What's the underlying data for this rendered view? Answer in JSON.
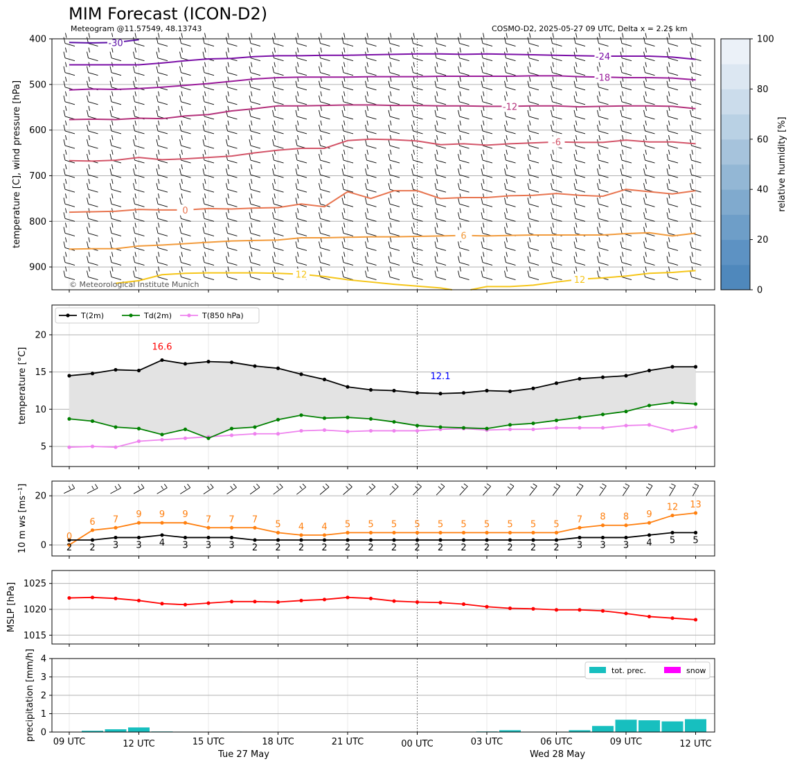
{
  "header": {
    "title": "MIM Forecast (ICON-D2)",
    "subtitle_left": "Meteogram @11.57549, 48.13743",
    "subtitle_right": "COSMO-D2, 2025-05-27 09 UTC, Delta x = 2.2$ km"
  },
  "chart_data": [
    {
      "id": "upper-air",
      "type": "line",
      "ylabel": "temperature [C], wind pressure [hPa]",
      "ylim": [
        950,
        400
      ],
      "yticks": [
        400,
        500,
        600,
        700,
        800,
        900
      ],
      "colorbar": {
        "label": "relative humidity [%]",
        "ticks": [
          0,
          20,
          40,
          60,
          80,
          100
        ]
      },
      "copyright": "© Meteorological Institute Munich",
      "contours": [
        {
          "label": "-30",
          "color": "#5b0ea6",
          "label_hour": 2,
          "x": [
            0,
            1,
            2,
            3
          ],
          "p": [
            408,
            409,
            408,
            402
          ]
        },
        {
          "label": "-24",
          "color": "#7a0ea6",
          "label_hour": 23,
          "x": [
            0,
            1,
            2,
            3,
            4,
            5,
            6,
            7,
            8,
            9,
            10,
            11,
            12,
            13,
            14,
            15,
            16,
            17,
            18,
            19,
            20,
            21,
            22,
            23,
            24,
            25,
            26,
            27
          ],
          "p": [
            457,
            457,
            457,
            457,
            453,
            448,
            444,
            443,
            439,
            437,
            437,
            436,
            436,
            435,
            434,
            433,
            433,
            434,
            433,
            434,
            435,
            436,
            437,
            438,
            438,
            438,
            440,
            445
          ]
        },
        {
          "label": "-18",
          "color": "#9a1a9a",
          "label_hour": 23,
          "x": [
            0,
            1,
            2,
            3,
            4,
            5,
            6,
            7,
            8,
            9,
            10,
            11,
            12,
            13,
            14,
            15,
            16,
            17,
            18,
            19,
            20,
            21,
            22,
            23,
            24,
            25,
            26,
            27
          ],
          "p": [
            512,
            510,
            511,
            509,
            506,
            502,
            498,
            493,
            488,
            485,
            484,
            484,
            484,
            483,
            483,
            483,
            482,
            482,
            482,
            482,
            481,
            481,
            483,
            484,
            485,
            485,
            486,
            490
          ]
        },
        {
          "label": "-12",
          "color": "#b3307a",
          "label_hour": 19,
          "x": [
            0,
            1,
            2,
            3,
            4,
            5,
            6,
            7,
            8,
            9,
            10,
            11,
            12,
            13,
            14,
            15,
            16,
            17,
            18,
            19,
            20,
            21,
            22,
            23,
            24,
            25,
            26,
            27
          ],
          "p": [
            577,
            576,
            577,
            574,
            575,
            569,
            566,
            558,
            553,
            547,
            547,
            546,
            545,
            545,
            546,
            546,
            547,
            547,
            548,
            548,
            547,
            547,
            549,
            548,
            547,
            547,
            548,
            553
          ]
        },
        {
          "label": "-6",
          "color": "#d35468",
          "label_hour": 21,
          "x": [
            0,
            1,
            2,
            3,
            4,
            5,
            6,
            7,
            8,
            9,
            10,
            11,
            12,
            13,
            14,
            15,
            16,
            17,
            18,
            19,
            20,
            21,
            22,
            23,
            24,
            25,
            26,
            27
          ],
          "p": [
            667,
            668,
            666,
            660,
            665,
            663,
            660,
            657,
            650,
            644,
            640,
            640,
            623,
            620,
            621,
            624,
            632,
            630,
            633,
            630,
            628,
            626,
            627,
            627,
            622,
            626,
            626,
            630
          ]
        },
        {
          "label": "0",
          "color": "#e8744f",
          "label_hour": 5,
          "x": [
            0,
            1,
            2,
            3,
            4,
            5,
            6,
            7,
            8,
            9,
            10,
            11,
            12,
            13,
            14,
            15,
            16,
            17,
            18,
            19,
            20,
            21,
            22,
            23,
            24,
            25,
            26,
            27
          ],
          "p": [
            780,
            779,
            778,
            774,
            775,
            775,
            772,
            773,
            771,
            770,
            762,
            768,
            735,
            750,
            733,
            733,
            750,
            748,
            748,
            744,
            743,
            739,
            743,
            745,
            730,
            735,
            740,
            733
          ]
        },
        {
          "label": "6",
          "color": "#f29a3a",
          "label_hour": 17,
          "x": [
            0,
            1,
            2,
            3,
            4,
            5,
            6,
            7,
            8,
            9,
            10,
            11,
            12,
            13,
            14,
            15,
            16,
            17,
            18,
            19,
            20,
            21,
            22,
            23,
            24,
            25,
            26,
            27
          ],
          "p": [
            861,
            860,
            860,
            854,
            852,
            849,
            846,
            843,
            842,
            841,
            836,
            836,
            835,
            834,
            834,
            833,
            832,
            831,
            832,
            831,
            830,
            830,
            830,
            830,
            827,
            825,
            832,
            826
          ]
        },
        {
          "label": "12",
          "color": "#f5c518",
          "label_hour": 10,
          "x": [
            2,
            3,
            4,
            5,
            6,
            7,
            8,
            9,
            10,
            11,
            12,
            13,
            14,
            15,
            16,
            16.5
          ],
          "p": [
            936,
            930,
            917,
            914,
            913,
            913,
            913,
            914,
            916,
            921,
            928,
            933,
            938,
            942,
            946,
            950
          ]
        },
        {
          "label": "12",
          "color": "#f5c518",
          "label_hour": 22,
          "x": [
            17.3,
            18,
            19,
            20,
            21,
            22,
            23,
            24,
            25,
            26,
            27
          ],
          "p": [
            950,
            943,
            943,
            940,
            933,
            927,
            924,
            920,
            914,
            912,
            908
          ]
        }
      ]
    },
    {
      "id": "temperature",
      "type": "line",
      "ylabel": "temperature [$^\\circ$C]",
      "ylim": [
        2.3,
        24
      ],
      "yticks": [
        5,
        10,
        15,
        20
      ],
      "max_label": "16.6",
      "min_label": "12.1",
      "legend": [
        "T(2m)",
        "Td(2m)",
        "T(850 hPa)"
      ],
      "colors": {
        "t2m": "#000000",
        "td2m": "#008000",
        "t850": "#ee82ee",
        "fill": "#e3e3e3",
        "max": "#ff0000",
        "min": "#0000ff"
      },
      "series": [
        {
          "name": "T(2m)",
          "values": [
            14.5,
            14.8,
            15.3,
            15.2,
            16.6,
            16.1,
            16.4,
            16.3,
            15.8,
            15.5,
            14.7,
            14.0,
            13.0,
            12.6,
            12.5,
            12.2,
            12.1,
            12.2,
            12.5,
            12.4,
            12.8,
            13.5,
            14.1,
            14.3,
            14.5,
            15.2,
            15.7,
            15.7
          ]
        },
        {
          "name": "Td(2m)",
          "values": [
            8.7,
            8.4,
            7.6,
            7.4,
            6.6,
            7.3,
            6.1,
            7.4,
            7.6,
            8.6,
            9.2,
            8.8,
            8.9,
            8.7,
            8.3,
            7.8,
            7.6,
            7.5,
            7.4,
            7.9,
            8.1,
            8.5,
            8.9,
            9.3,
            9.7,
            10.5,
            10.9,
            10.7
          ]
        },
        {
          "name": "T(850 hPa)",
          "values": [
            4.9,
            5.0,
            4.9,
            5.7,
            5.9,
            6.1,
            6.3,
            6.5,
            6.7,
            6.7,
            7.1,
            7.2,
            7.0,
            7.1,
            7.1,
            7.1,
            7.3,
            7.4,
            7.2,
            7.3,
            7.3,
            7.5,
            7.5,
            7.5,
            7.8,
            7.9,
            7.1,
            7.6
          ]
        }
      ]
    },
    {
      "id": "wind",
      "type": "line",
      "ylabel": "10 m ws [ms$^{-1}$]",
      "ylim": [
        -4.5,
        26
      ],
      "yticks": [
        0,
        20
      ],
      "colors": {
        "mean": "#000000",
        "gust": "#ff7f0e"
      },
      "series": [
        {
          "name": "mean",
          "values": [
            2,
            2,
            3,
            3,
            4,
            3,
            3,
            3,
            2,
            2,
            2,
            2,
            2,
            2,
            2,
            2,
            2,
            2,
            2,
            2,
            2,
            2,
            3,
            3,
            3,
            4,
            5,
            5
          ],
          "labels": [
            "2",
            "2",
            "3",
            "3",
            "4",
            "3",
            "3",
            "3",
            "2",
            "2",
            "2",
            "2",
            "2",
            "2",
            "2",
            "2",
            "2",
            "2",
            "2",
            "2",
            "2",
            "2",
            "3",
            "3",
            "3",
            "4",
            "5",
            "5"
          ]
        },
        {
          "name": "gust",
          "values": [
            0,
            6,
            7,
            9,
            9,
            9,
            7,
            7,
            7,
            5,
            4,
            4,
            5,
            5,
            5,
            5,
            5,
            5,
            5,
            5,
            5,
            5,
            7,
            8,
            8,
            9,
            12,
            13
          ],
          "labels": [
            "0",
            "6",
            "7",
            "9",
            "9",
            "9",
            "7",
            "7",
            "7",
            "5",
            "4",
            "4",
            "5",
            "5",
            "5",
            "5",
            "5",
            "5",
            "5",
            "5",
            "5",
            "5",
            "7",
            "8",
            "8",
            "9",
            "12",
            "13"
          ]
        }
      ]
    },
    {
      "id": "mslp",
      "type": "line",
      "ylabel": "MSLP [hPa]",
      "ylim": [
        1013.3,
        1027.5
      ],
      "yticks": [
        1015,
        1020,
        1025
      ],
      "colors": {
        "line": "#ff0000"
      },
      "series": [
        {
          "name": "MSLP",
          "values": [
            1022.2,
            1022.3,
            1022.1,
            1021.7,
            1021.1,
            1020.9,
            1021.2,
            1021.5,
            1021.5,
            1021.4,
            1021.7,
            1021.9,
            1022.3,
            1022.1,
            1021.6,
            1021.4,
            1021.3,
            1021.0,
            1020.5,
            1020.2,
            1020.1,
            1019.9,
            1019.9,
            1019.7,
            1019.2,
            1018.6,
            1018.3,
            1018.0
          ]
        }
      ]
    },
    {
      "id": "precip",
      "type": "bar",
      "ylabel": "precipitation [mm/h]",
      "ylim": [
        0,
        4
      ],
      "yticks": [
        0,
        1,
        2,
        3,
        4
      ],
      "legend": [
        "tot. prec.",
        "snow"
      ],
      "colors": {
        "tot": "#17bfbf",
        "snow": "#ff00ff"
      },
      "series": [
        {
          "name": "tot. prec.",
          "values": [
            0,
            0.07,
            0.15,
            0.25,
            0.03,
            0.02,
            0,
            0.02,
            0,
            0,
            0,
            0,
            0,
            0,
            0,
            0,
            0,
            0.02,
            0.03,
            0.1,
            0.02,
            0.02,
            0.1,
            0.33,
            0.67,
            0.64,
            0.58,
            0.7
          ]
        }
      ]
    }
  ],
  "x_axis": {
    "tick_labels": [
      "09 UTC",
      "12 UTC",
      "15 UTC",
      "18 UTC",
      "21 UTC",
      "00 UTC",
      "03 UTC",
      "06 UTC",
      "09 UTC",
      "12 UTC"
    ],
    "day_labels": [
      "Tue 27 May",
      "Wed 28 May"
    ]
  }
}
